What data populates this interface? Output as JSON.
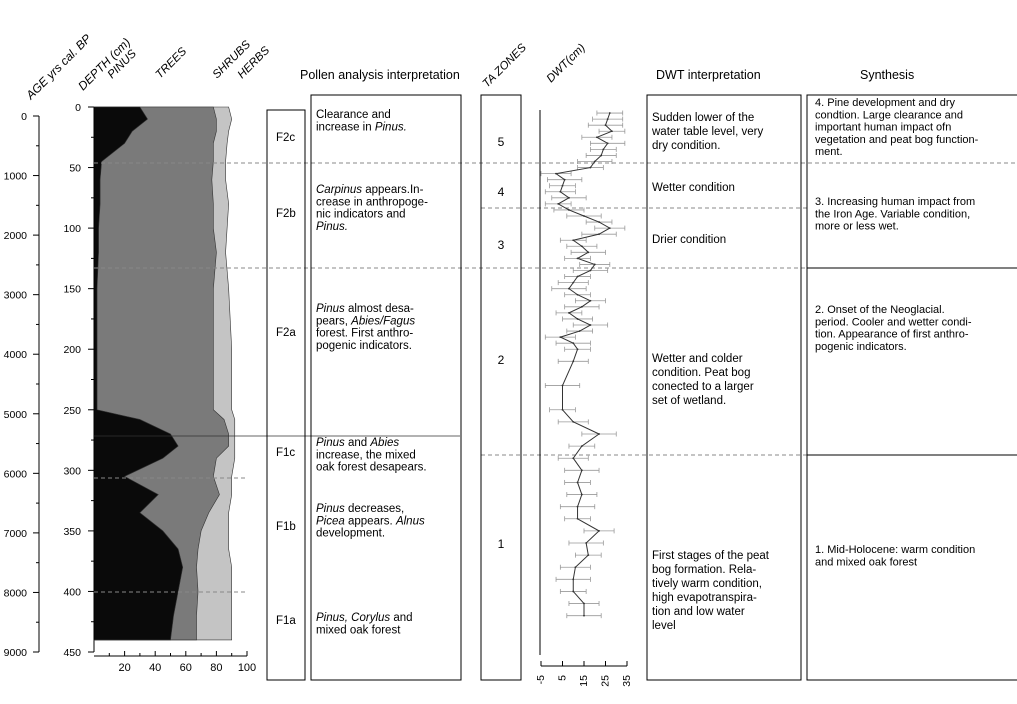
{
  "headers": {
    "age": "AGE yrs cal. BP",
    "depth": "DEPTH (cm)",
    "pinus": "PINUS",
    "trees": "TREES",
    "shrubs": "SHRUBS",
    "herbs": "HERBS",
    "pollen": "Pollen analysis interpretation",
    "ta_zones": "TA ZONES",
    "dwt": "DWT(cm)",
    "dwt_interp": "DWT interpretation",
    "synthesis": "Synthesis"
  },
  "age_ticks": [
    "0",
    "1000",
    "2000",
    "3000",
    "4000",
    "5000",
    "6000",
    "7000",
    "8000",
    "9000"
  ],
  "depth_ticks": [
    "0",
    "50",
    "100",
    "150",
    "200",
    "250",
    "300",
    "350",
    "400",
    "450"
  ],
  "pct_ticks": [
    "20",
    "40",
    "60",
    "80",
    "100"
  ],
  "dwt_ticks": [
    "-5",
    "5",
    "15",
    "25",
    "35"
  ],
  "pollen_zones": [
    {
      "label": "F2c",
      "text": [
        "Clearance and",
        "increase in Pinus."
      ]
    },
    {
      "label": "F2b",
      "text": [
        "Carpinus appears.In-",
        "crease in anthropoge-",
        "nic indicators  and",
        "Pinus."
      ]
    },
    {
      "label": "F2a",
      "text": [
        "Pinus almost desa-",
        "pears, Abies/Fagus",
        "forest.  First anthro-",
        "pogenic indicators."
      ]
    },
    {
      "label": "F1c",
      "text": [
        "Pinus and Abies",
        "increase, the mixed",
        "oak forest desapears."
      ]
    },
    {
      "label": "F1b",
      "text": [
        "Pinus decreases,",
        "Picea appears. Alnus",
        "development."
      ]
    },
    {
      "label": "F1a",
      "text": [
        "Pinus, Corylus and",
        "mixed oak forest"
      ]
    }
  ],
  "ta_zones": [
    "5",
    "4",
    "3",
    "2",
    "1"
  ],
  "dwt_interpretation": [
    [
      "Sudden lower of the",
      "water table level, very",
      "dry condition."
    ],
    [
      "Wetter condition"
    ],
    [
      "Drier condition"
    ],
    [
      "Wetter and colder",
      "condition. Peat bog",
      "conected to a larger",
      "set of wetland."
    ],
    [
      "First stages of the peat",
      "bog formation. Rela-",
      "tively warm condition,",
      "high evapotranspira-",
      "tion and low water",
      "level"
    ]
  ],
  "synthesis": [
    [
      "4. Pine development and dry",
      "condtion. Large clearance and",
      "important human impact ofn",
      "vegetation and peat bog function-",
      "ment."
    ],
    [
      "3. Increasing human impact from",
      "the Iron Age. Variable condition,",
      "more or less wet."
    ],
    [
      "2. Onset of the Neoglacial.",
      "period. Cooler and wetter condi-",
      "tion. Appearance of first anthro-",
      "pogenic indicators."
    ],
    [
      "1. Mid-Holocene: warm condition",
      "and mixed oak forest"
    ]
  ],
  "colors": {
    "pinus": "#0a0a0a",
    "trees": "#7a7a7a",
    "shrubs": "#c4c4c4",
    "herbs": "#ffffff",
    "dashed": "#888888"
  },
  "chart_data": [
    {
      "type": "area",
      "depth_cm": [
        0,
        10,
        20,
        30,
        45,
        60,
        80,
        100,
        120,
        150,
        200,
        250,
        258,
        270,
        280,
        290,
        305,
        320,
        335,
        350,
        365,
        380,
        400,
        420,
        440
      ],
      "series": [
        {
          "name": "PINUS",
          "values": [
            30,
            35,
            25,
            20,
            5,
            4,
            4,
            3,
            3,
            2,
            2,
            2,
            30,
            50,
            55,
            45,
            20,
            42,
            30,
            45,
            55,
            58,
            55,
            52,
            50
          ]
        },
        {
          "name": "TREES",
          "values": [
            78,
            80,
            80,
            78,
            78,
            77,
            78,
            78,
            80,
            78,
            78,
            78,
            85,
            88,
            88,
            80,
            78,
            82,
            75,
            70,
            68,
            67,
            68,
            67,
            67
          ]
        },
        {
          "name": "SHRUBS",
          "values": [
            88,
            90,
            88,
            87,
            86,
            86,
            88,
            87,
            86,
            88,
            90,
            90,
            92,
            92,
            92,
            92,
            90,
            90,
            88,
            88,
            88,
            90,
            90,
            90,
            90
          ]
        },
        {
          "name": "HERBS",
          "values": [
            100,
            100,
            100,
            100,
            100,
            100,
            100,
            100,
            100,
            100,
            100,
            100,
            100,
            100,
            100,
            100,
            100,
            100,
            100,
            100,
            100,
            100,
            100,
            100,
            100
          ]
        }
      ],
      "xlim": [
        0,
        100
      ],
      "ylim": [
        0,
        450
      ]
    },
    {
      "type": "line",
      "ylabel": "DWT(cm)",
      "depth_cm": [
        5,
        10,
        15,
        20,
        25,
        30,
        35,
        40,
        45,
        50,
        55,
        60,
        65,
        70,
        75,
        80,
        85,
        90,
        95,
        100,
        105,
        110,
        115,
        120,
        125,
        130,
        135,
        140,
        145,
        150,
        155,
        160,
        165,
        170,
        175,
        180,
        185,
        190,
        195,
        200,
        210,
        230,
        250,
        260,
        270,
        280,
        290,
        300,
        310,
        320,
        330,
        340,
        350,
        360,
        370,
        380,
        390,
        400,
        410,
        420
      ],
      "values": [
        27,
        26,
        25,
        28,
        21,
        26,
        24,
        23,
        20,
        18,
        2,
        6,
        5,
        4,
        8,
        3,
        8,
        15,
        22,
        27,
        22,
        10,
        14,
        17,
        12,
        20,
        18,
        12,
        10,
        8,
        12,
        18,
        14,
        8,
        12,
        18,
        13,
        4,
        10,
        12,
        10,
        5,
        5,
        10,
        22,
        14,
        10,
        14,
        12,
        14,
        12,
        12,
        22,
        16,
        17,
        11,
        10,
        10,
        15,
        15
      ],
      "xlim": [
        -5,
        35
      ],
      "ylim": [
        0,
        450
      ]
    }
  ]
}
